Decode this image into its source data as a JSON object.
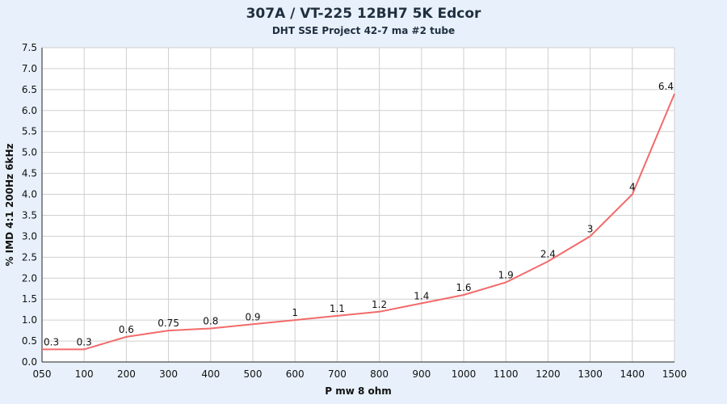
{
  "chart_data": {
    "type": "line",
    "title": "307A / VT-225 12BH7  5K Edcor",
    "subtitle": "DHT SSE Project 42-7 ma #2 tube",
    "xlabel": "P mw 8 ohm",
    "ylabel": "% IMD 4:1 200Hz 6kHz",
    "categories": [
      "050",
      "100",
      "200",
      "300",
      "400",
      "500",
      "600",
      "700",
      "800",
      "900",
      "1000",
      "1100",
      "1200",
      "1300",
      "1400",
      "1500"
    ],
    "values": [
      0.3,
      0.3,
      0.6,
      0.75,
      0.8,
      0.9,
      1,
      1.1,
      1.2,
      1.4,
      1.6,
      1.9,
      2.4,
      3,
      4,
      6.4
    ],
    "data_labels": [
      "0.3",
      "0.3",
      "0.6",
      "0.75",
      "0.8",
      "0.9",
      "1",
      "1.1",
      "1.2",
      "1.4",
      "1.6",
      "1.9",
      "2.4",
      "3",
      "4",
      "6.4"
    ],
    "y_tick_labels": [
      "0.0",
      "0.5",
      "1.0",
      "1.5",
      "2.0",
      "2.5",
      "3.0",
      "3.5",
      "4.0",
      "4.5",
      "5.0",
      "5.5",
      "6.0",
      "6.5",
      "7.0",
      "7.5"
    ],
    "ylim": [
      0,
      7.5
    ],
    "grid": true,
    "legend": "none",
    "line_color": "#f26b6b",
    "background": "#e8f1fb",
    "plot_background": "#ffffff",
    "grid_color": "#cfcfcf"
  }
}
